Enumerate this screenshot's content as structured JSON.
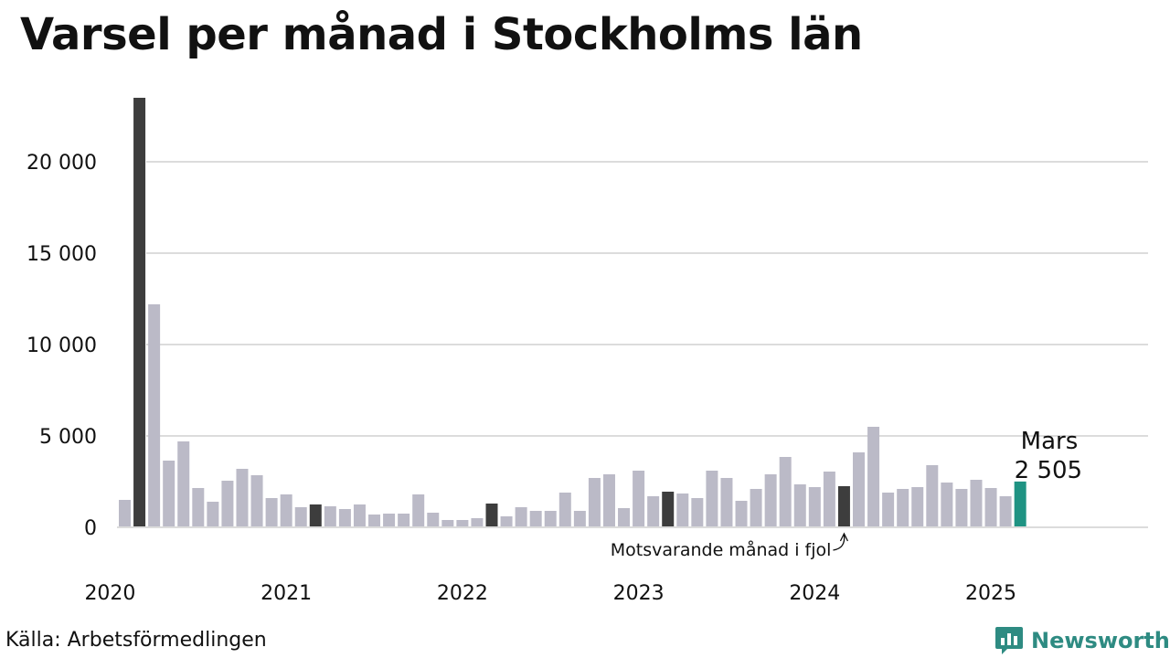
{
  "title": "Varsel per månad i Stockholms län",
  "source": "Källa: Arbetsförmedlingen",
  "brand": {
    "name": "Newsworthy",
    "logo_icon": "newsworthy-logo-icon",
    "color": "#2e8b82"
  },
  "chart_data": {
    "type": "bar",
    "title": "Varsel per månad i Stockholms län",
    "xlabel": "",
    "ylabel": "",
    "ylim": [
      0,
      23500
    ],
    "yticks": [
      0,
      5000,
      10000,
      15000,
      20000
    ],
    "ytick_labels": [
      "0",
      "5 000",
      "10 000",
      "15 000",
      "20 000"
    ],
    "xtick_labels": [
      "2020",
      "2021",
      "2022",
      "2023",
      "2024",
      "2025"
    ],
    "grid": true,
    "start": "2020-02",
    "values": [
      1500,
      23500,
      12200,
      3650,
      4700,
      2150,
      1400,
      2550,
      3200,
      2850,
      1600,
      1800,
      1100,
      1250,
      1150,
      1000,
      1250,
      700,
      750,
      750,
      1800,
      800,
      400,
      400,
      500,
      1300,
      600,
      1100,
      900,
      900,
      1900,
      900,
      2700,
      2900,
      1050,
      3100,
      1700,
      1950,
      1850,
      1600,
      3100,
      2700,
      1450,
      2100,
      2900,
      3850,
      2350,
      2200,
      3050,
      2250,
      4100,
      5500,
      1900,
      2100,
      2200,
      3400,
      2450,
      2100,
      2600,
      2150,
      1700,
      2505
    ],
    "colors": {
      "default": "#bbbac7",
      "highlight_march": "#3d3d3d",
      "current": "#1f9383",
      "grid": "#dcdcdc"
    },
    "annotations": {
      "current_month": "Mars",
      "current_value": "2 505",
      "note": "Motsvarande månad i fjol"
    }
  }
}
